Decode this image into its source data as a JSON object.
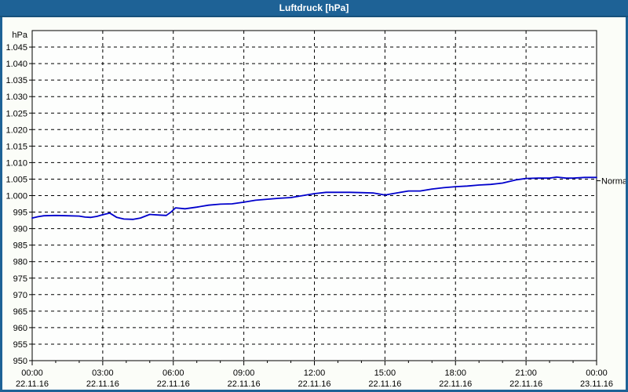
{
  "window": {
    "title": "Luftdruck [hPa]"
  },
  "colors": {
    "titlebar_bg": "#1e6296",
    "titlebar_text": "#ffffff",
    "window_border": "#1e6296",
    "window_bg": "#fbfdf8",
    "plot_bg": "#fdfefd",
    "plot_border": "#000000",
    "gridline": "#000000",
    "series": "#0000cc",
    "label_text": "#000000"
  },
  "chart_data": {
    "type": "line",
    "title": "Luftdruck [hPa]",
    "grid": "dashed",
    "legend": "none",
    "y_axis": {
      "unit_label": "hPa",
      "min": 950,
      "max": 1050,
      "gridline_step": 5,
      "ticks": [
        {
          "value": 950,
          "label": "950"
        },
        {
          "value": 955,
          "label": "955"
        },
        {
          "value": 960,
          "label": "960"
        },
        {
          "value": 965,
          "label": "965"
        },
        {
          "value": 970,
          "label": "970"
        },
        {
          "value": 975,
          "label": "975"
        },
        {
          "value": 980,
          "label": "980"
        },
        {
          "value": 985,
          "label": "985"
        },
        {
          "value": 990,
          "label": "990"
        },
        {
          "value": 995,
          "label": "995"
        },
        {
          "value": 1000,
          "label": "1.000"
        },
        {
          "value": 1005,
          "label": "1.005"
        },
        {
          "value": 1010,
          "label": "1.010"
        },
        {
          "value": 1015,
          "label": "1.015"
        },
        {
          "value": 1020,
          "label": "1.020"
        },
        {
          "value": 1025,
          "label": "1.025"
        },
        {
          "value": 1030,
          "label": "1.030"
        },
        {
          "value": 1035,
          "label": "1.035"
        },
        {
          "value": 1040,
          "label": "1.040"
        },
        {
          "value": 1045,
          "label": "1.045"
        }
      ]
    },
    "x_axis": {
      "hours_span": 24,
      "minor_tick_every_hours": 1,
      "major_ticks": [
        {
          "hour": 0,
          "time": "00:00",
          "date": "22.11.16"
        },
        {
          "hour": 3,
          "time": "03:00",
          "date": "22.11.16"
        },
        {
          "hour": 6,
          "time": "06:00",
          "date": "22.11.16"
        },
        {
          "hour": 9,
          "time": "09:00",
          "date": "22.11.16"
        },
        {
          "hour": 12,
          "time": "12:00",
          "date": "22.11.16"
        },
        {
          "hour": 15,
          "time": "15:00",
          "date": "22.11.16"
        },
        {
          "hour": 18,
          "time": "18:00",
          "date": "22.11.16"
        },
        {
          "hour": 21,
          "time": "21:00",
          "date": "22.11.16"
        },
        {
          "hour": 24,
          "time": "00:00",
          "date": "23.11.16"
        }
      ]
    },
    "series": [
      {
        "name": "Luftdruck",
        "color": "#0000cc",
        "hours": [
          0,
          0.25,
          0.5,
          1,
          1.5,
          2,
          2.25,
          2.5,
          2.75,
          3,
          3.3,
          3.6,
          3.9,
          4.3,
          4.6,
          5,
          5.4,
          5.7,
          5.9,
          6.1,
          6.5,
          7,
          7.5,
          8,
          8.5,
          9,
          9.5,
          10,
          10.5,
          11,
          11.5,
          12,
          12.5,
          13,
          13.5,
          14,
          14.5,
          15,
          15.5,
          16,
          16.5,
          17,
          17.5,
          18,
          18.5,
          19,
          19.5,
          20,
          20.3,
          20.6,
          21,
          21.5,
          22,
          22.3,
          22.7,
          23,
          23.5,
          24
        ],
        "values_hpa": [
          993.2,
          993.6,
          993.9,
          994.0,
          993.9,
          993.8,
          993.5,
          993.4,
          993.7,
          994.2,
          994.7,
          993.4,
          992.9,
          992.8,
          993.2,
          994.3,
          994.1,
          994.0,
          995.0,
          996.3,
          996.0,
          996.5,
          997.1,
          997.4,
          997.5,
          998.0,
          998.6,
          998.9,
          999.2,
          999.4,
          1000.0,
          1000.6,
          1001.0,
          1001.0,
          1001.0,
          1000.9,
          1000.8,
          1000.2,
          1000.8,
          1001.4,
          1001.4,
          1002.0,
          1002.4,
          1002.7,
          1002.9,
          1003.2,
          1003.4,
          1003.8,
          1004.3,
          1004.8,
          1005.2,
          1005.3,
          1005.3,
          1005.6,
          1005.3,
          1005.3,
          1005.5,
          1005.5
        ]
      }
    ],
    "annotations": [
      {
        "label": "Normal",
        "value_hpa": 1004.5,
        "position": "right-axis"
      }
    ]
  }
}
